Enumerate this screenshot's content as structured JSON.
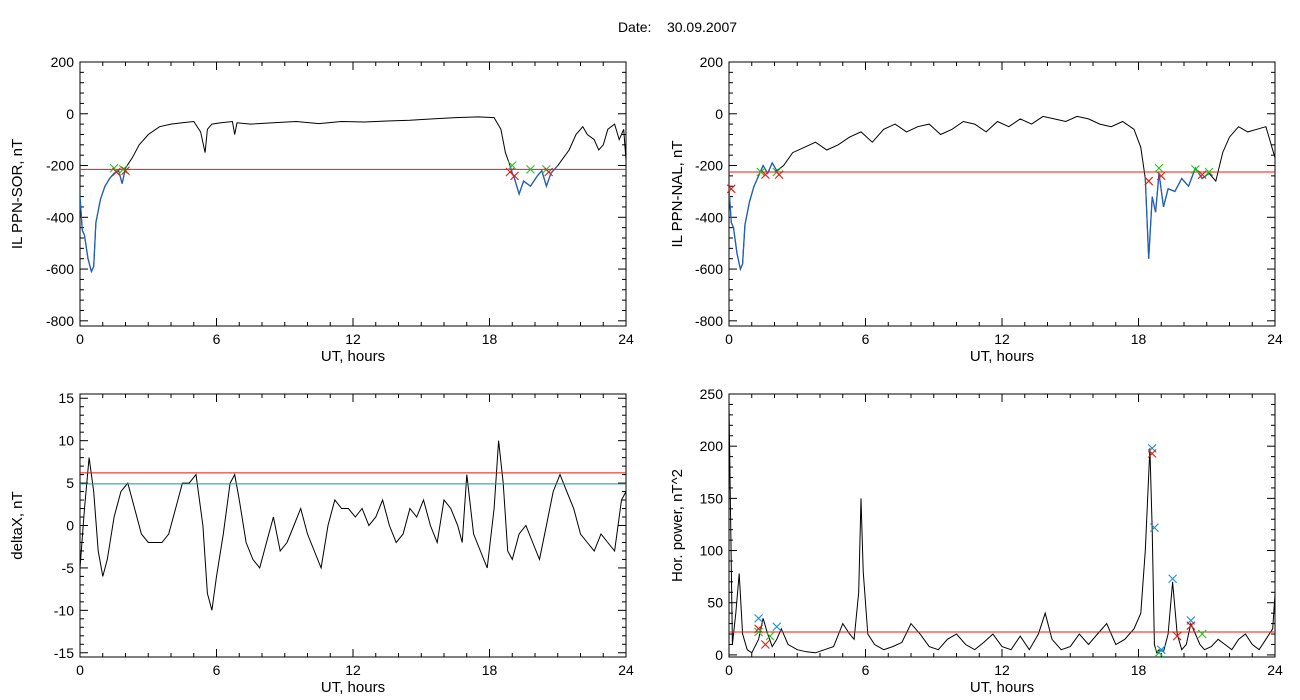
{
  "page": {
    "title_prefix": "Date:",
    "date": "30.09.2007"
  },
  "colors": {
    "data_line": "#000000",
    "highlight_line": "#1f5fbf",
    "threshold_red": "#e8180f",
    "threshold_teal": "#1a8fa0",
    "marker_red": "#e8180f",
    "marker_green": "#22c122",
    "marker_blue": "#1a8fcf"
  },
  "chart_data": [
    {
      "type": "line",
      "panel": "top-left",
      "ylabel": "IL PPN-SOR, nT",
      "xlabel": "UT, hours",
      "xlim": [
        0,
        24
      ],
      "ylim": [
        -820,
        200
      ],
      "xticks": [
        0,
        6,
        12,
        18,
        24
      ],
      "yticks": [
        -800,
        -600,
        -400,
        -200,
        0,
        200
      ],
      "thresholds": [
        {
          "y": -215,
          "color": "red"
        }
      ],
      "series": [
        {
          "role": "main",
          "x": [
            0,
            0.1,
            0.2,
            0.35,
            0.5,
            0.6,
            0.7,
            0.9,
            1.1,
            1.3,
            1.5,
            1.7,
            1.85,
            2.0,
            2.3,
            2.6,
            3.0,
            3.5,
            4.0,
            4.5,
            5.0,
            5.3,
            5.5,
            5.6,
            5.8,
            6.2,
            6.7,
            6.8,
            6.9,
            7.5,
            8.5,
            9.5,
            10.5,
            11.5,
            12.5,
            13.5,
            14.5,
            15.5,
            16.5,
            17.5,
            18.2,
            18.5,
            18.7,
            18.9,
            19.0,
            19.1,
            19.3,
            19.5,
            19.8,
            20.1,
            20.3,
            20.5,
            20.7,
            21.0,
            21.5,
            21.8,
            22.1,
            22.3,
            22.6,
            22.8,
            23.0,
            23.2,
            23.5,
            23.7,
            23.9,
            24.0
          ],
          "y": [
            -320,
            -450,
            -470,
            -560,
            -610,
            -590,
            -420,
            -330,
            -280,
            -250,
            -230,
            -220,
            -270,
            -210,
            -170,
            -120,
            -80,
            -50,
            -40,
            -35,
            -30,
            -70,
            -150,
            -60,
            -40,
            -35,
            -30,
            -80,
            -35,
            -40,
            -35,
            -30,
            -38,
            -30,
            -32,
            -28,
            -25,
            -20,
            -15,
            -12,
            -15,
            -60,
            -150,
            -200,
            -230,
            -250,
            -310,
            -260,
            -280,
            -240,
            -220,
            -280,
            -230,
            -200,
            -140,
            -80,
            -50,
            -80,
            -100,
            -140,
            -120,
            -60,
            -40,
            -100,
            -60,
            -180
          ]
        },
        {
          "role": "highlight",
          "segments": [
            {
              "x": [
                0,
                0.1,
                0.2,
                0.35,
                0.5,
                0.6,
                0.7,
                0.9,
                1.1,
                1.3,
                1.5,
                1.7,
                1.85,
                2.0
              ],
              "y": [
                -320,
                -450,
                -470,
                -560,
                -610,
                -590,
                -420,
                -330,
                -280,
                -250,
                -230,
                -220,
                -270,
                -210
              ]
            },
            {
              "x": [
                18.9,
                19.0,
                19.1,
                19.3,
                19.5,
                19.8,
                20.1,
                20.3,
                20.5,
                20.7,
                21.0
              ],
              "y": [
                -200,
                -230,
                -250,
                -310,
                -260,
                -280,
                -240,
                -220,
                -280,
                -230,
                -200
              ]
            }
          ]
        }
      ],
      "markers": [
        {
          "x": 1.5,
          "y": -210,
          "color": "green"
        },
        {
          "x": 1.6,
          "y": -225,
          "color": "red"
        },
        {
          "x": 1.9,
          "y": -215,
          "color": "green"
        },
        {
          "x": 2.0,
          "y": -220,
          "color": "red"
        },
        {
          "x": 18.9,
          "y": -225,
          "color": "red"
        },
        {
          "x": 19.0,
          "y": -200,
          "color": "green"
        },
        {
          "x": 19.1,
          "y": -240,
          "color": "red"
        },
        {
          "x": 19.8,
          "y": -215,
          "color": "green"
        },
        {
          "x": 20.5,
          "y": -215,
          "color": "green"
        },
        {
          "x": 20.6,
          "y": -225,
          "color": "red"
        }
      ]
    },
    {
      "type": "line",
      "panel": "top-right",
      "ylabel": "IL PPN-NAL, nT",
      "xlabel": "UT, hours",
      "xlim": [
        0,
        24
      ],
      "ylim": [
        -820,
        200
      ],
      "xticks": [
        0,
        6,
        12,
        18,
        24
      ],
      "yticks": [
        -800,
        -600,
        -400,
        -200,
        0,
        200
      ],
      "thresholds": [
        {
          "y": -225,
          "color": "red"
        }
      ],
      "series": [
        {
          "role": "main",
          "x": [
            0,
            0.1,
            0.2,
            0.35,
            0.5,
            0.6,
            0.7,
            0.9,
            1.1,
            1.3,
            1.5,
            1.7,
            1.9,
            2.1,
            2.4,
            2.8,
            3.3,
            3.8,
            4.3,
            4.8,
            5.3,
            5.8,
            6.3,
            6.8,
            7.3,
            7.8,
            8.3,
            8.8,
            9.3,
            9.8,
            10.3,
            10.8,
            11.3,
            11.8,
            12.3,
            12.8,
            13.3,
            13.8,
            14.3,
            14.8,
            15.3,
            15.8,
            16.3,
            16.8,
            17.3,
            17.8,
            18.1,
            18.3,
            18.45,
            18.6,
            18.75,
            18.9,
            19.1,
            19.3,
            19.6,
            19.9,
            20.2,
            20.5,
            20.8,
            21.1,
            21.4,
            21.7,
            22.0,
            22.4,
            22.8,
            23.2,
            23.6,
            24.0
          ],
          "y": [
            -290,
            -420,
            -440,
            -540,
            -600,
            -580,
            -430,
            -340,
            -280,
            -240,
            -200,
            -230,
            -190,
            -220,
            -200,
            -150,
            -130,
            -110,
            -140,
            -120,
            -90,
            -70,
            -110,
            -60,
            -40,
            -70,
            -50,
            -40,
            -80,
            -60,
            -30,
            -40,
            -70,
            -30,
            -50,
            -20,
            -40,
            -10,
            -20,
            -30,
            -10,
            -20,
            -40,
            -50,
            -30,
            -60,
            -130,
            -250,
            -560,
            -320,
            -380,
            -230,
            -360,
            -290,
            -300,
            -250,
            -280,
            -210,
            -250,
            -230,
            -260,
            -150,
            -90,
            -50,
            -70,
            -60,
            -50,
            -170
          ]
        },
        {
          "role": "highlight",
          "segments": [
            {
              "x": [
                0,
                0.1,
                0.2,
                0.35,
                0.5,
                0.6,
                0.7,
                0.9,
                1.1,
                1.3,
                1.5,
                1.7,
                1.9,
                2.1
              ],
              "y": [
                -290,
                -420,
                -440,
                -540,
                -600,
                -580,
                -430,
                -340,
                -280,
                -240,
                -200,
                -230,
                -190,
                -220
              ]
            },
            {
              "x": [
                18.3,
                18.45,
                18.6,
                18.75,
                18.9,
                19.1,
                19.3,
                19.6,
                19.9,
                20.2,
                20.5,
                20.8,
                21.1
              ],
              "y": [
                -250,
                -560,
                -320,
                -380,
                -230,
                -360,
                -290,
                -300,
                -250,
                -280,
                -210,
                -250,
                -230
              ]
            }
          ]
        }
      ],
      "markers": [
        {
          "x": 0.1,
          "y": -290,
          "color": "red"
        },
        {
          "x": 1.4,
          "y": -225,
          "color": "green"
        },
        {
          "x": 1.6,
          "y": -235,
          "color": "red"
        },
        {
          "x": 2.1,
          "y": -225,
          "color": "green"
        },
        {
          "x": 2.2,
          "y": -235,
          "color": "red"
        },
        {
          "x": 18.45,
          "y": -260,
          "color": "red"
        },
        {
          "x": 18.9,
          "y": -210,
          "color": "green"
        },
        {
          "x": 19.0,
          "y": -240,
          "color": "red"
        },
        {
          "x": 20.5,
          "y": -215,
          "color": "green"
        },
        {
          "x": 20.8,
          "y": -235,
          "color": "red"
        },
        {
          "x": 21.1,
          "y": -225,
          "color": "green"
        }
      ]
    },
    {
      "type": "line",
      "panel": "bottom-left",
      "ylabel": "deltaX, nT",
      "xlabel": "UT, hours",
      "xlim": [
        0,
        24
      ],
      "ylim": [
        -15.5,
        15.5
      ],
      "xticks": [
        0,
        6,
        12,
        18,
        24
      ],
      "yticks": [
        -15,
        -10,
        -5,
        0,
        5,
        10,
        15
      ],
      "thresholds": [
        {
          "y": 6.2,
          "color": "red"
        },
        {
          "y": 4.9,
          "color": "teal"
        }
      ],
      "series": [
        {
          "role": "main",
          "x": [
            0,
            0.2,
            0.4,
            0.6,
            0.8,
            1.0,
            1.2,
            1.5,
            1.8,
            2.1,
            2.4,
            2.7,
            3.0,
            3.3,
            3.6,
            3.9,
            4.2,
            4.5,
            4.8,
            5.1,
            5.4,
            5.6,
            5.8,
            6.0,
            6.3,
            6.6,
            6.8,
            7.0,
            7.3,
            7.6,
            7.9,
            8.2,
            8.5,
            8.8,
            9.1,
            9.4,
            9.7,
            10.0,
            10.3,
            10.6,
            10.9,
            11.2,
            11.5,
            11.8,
            12.1,
            12.4,
            12.7,
            13.0,
            13.3,
            13.6,
            13.9,
            14.2,
            14.5,
            14.8,
            15.1,
            15.4,
            15.7,
            16.0,
            16.3,
            16.6,
            16.8,
            17.0,
            17.3,
            17.6,
            17.9,
            18.2,
            18.4,
            18.6,
            18.8,
            19.0,
            19.3,
            19.6,
            19.9,
            20.2,
            20.5,
            20.8,
            21.1,
            21.4,
            21.7,
            22.0,
            22.3,
            22.6,
            22.9,
            23.2,
            23.5,
            23.8,
            24.0
          ],
          "y": [
            -5,
            2,
            8,
            4,
            -3,
            -6,
            -4,
            1,
            4,
            5,
            2,
            -1,
            -2,
            -2,
            -2,
            -1,
            2,
            5,
            5,
            6,
            0,
            -8,
            -10,
            -6,
            -1,
            5,
            6,
            3,
            -2,
            -4,
            -5,
            -2,
            1,
            -3,
            -2,
            0,
            2,
            -1,
            -3,
            -5,
            0,
            3,
            2,
            2,
            1,
            2,
            0,
            1,
            3,
            0,
            -2,
            -1,
            2,
            1,
            3,
            0,
            -2,
            3,
            2,
            0,
            -2,
            6,
            -1,
            -3,
            -5,
            2,
            10,
            5,
            -3,
            -4,
            -1,
            0,
            -2,
            -4,
            0,
            4,
            6,
            4,
            2,
            -1,
            -2,
            -3,
            -1,
            -2,
            -3,
            3,
            4
          ]
        }
      ],
      "markers": []
    },
    {
      "type": "line",
      "panel": "bottom-right",
      "ylabel": "Hor. power, nT^2",
      "xlabel": "UT, hours",
      "xlim": [
        0,
        24
      ],
      "ylim": [
        -2,
        250
      ],
      "xticks": [
        0,
        6,
        12,
        18,
        24
      ],
      "yticks": [
        0,
        50,
        100,
        150,
        200,
        250
      ],
      "thresholds": [
        {
          "y": 22,
          "color": "red"
        }
      ],
      "series": [
        {
          "role": "main",
          "x": [
            0,
            0.15,
            0.3,
            0.45,
            0.6,
            0.8,
            1.0,
            1.3,
            1.5,
            1.7,
            1.9,
            2.1,
            2.3,
            2.6,
            3.0,
            3.4,
            3.8,
            4.2,
            4.6,
            5.0,
            5.3,
            5.5,
            5.7,
            5.8,
            5.9,
            6.1,
            6.4,
            6.8,
            7.2,
            7.6,
            8.0,
            8.4,
            8.8,
            9.2,
            9.6,
            10.0,
            10.4,
            10.8,
            11.2,
            11.6,
            12.0,
            12.4,
            12.8,
            13.2,
            13.6,
            13.9,
            14.2,
            14.6,
            15.0,
            15.4,
            15.8,
            16.2,
            16.6,
            17.0,
            17.4,
            17.8,
            18.1,
            18.3,
            18.5,
            18.6,
            18.7,
            18.8,
            18.9,
            19.1,
            19.3,
            19.5,
            19.7,
            19.9,
            20.1,
            20.3,
            20.5,
            20.7,
            20.9,
            21.2,
            21.5,
            21.8,
            22.1,
            22.4,
            22.7,
            23.0,
            23.3,
            23.6,
            23.9,
            24.0
          ],
          "y": [
            240,
            10,
            40,
            78,
            20,
            5,
            2,
            15,
            35,
            20,
            8,
            15,
            25,
            10,
            5,
            3,
            2,
            5,
            8,
            30,
            20,
            15,
            60,
            150,
            80,
            20,
            10,
            5,
            8,
            12,
            30,
            20,
            8,
            5,
            15,
            20,
            10,
            5,
            12,
            20,
            8,
            5,
            18,
            5,
            20,
            40,
            15,
            5,
            8,
            20,
            10,
            20,
            30,
            10,
            15,
            25,
            40,
            100,
            198,
            120,
            10,
            2,
            5,
            3,
            20,
            70,
            20,
            5,
            10,
            30,
            20,
            10,
            5,
            8,
            15,
            10,
            5,
            15,
            20,
            10,
            5,
            15,
            25,
            58
          ]
        }
      ],
      "markers": [
        {
          "x": 1.3,
          "y": 35,
          "color": "blue"
        },
        {
          "x": 1.3,
          "y": 25,
          "color": "red"
        },
        {
          "x": 1.3,
          "y": 22,
          "color": "green"
        },
        {
          "x": 1.6,
          "y": 10,
          "color": "red"
        },
        {
          "x": 1.8,
          "y": 18,
          "color": "green"
        },
        {
          "x": 2.1,
          "y": 27,
          "color": "blue"
        },
        {
          "x": 18.6,
          "y": 198,
          "color": "blue"
        },
        {
          "x": 18.6,
          "y": 193,
          "color": "red"
        },
        {
          "x": 18.7,
          "y": 122,
          "color": "blue"
        },
        {
          "x": 18.9,
          "y": 2,
          "color": "green"
        },
        {
          "x": 19.0,
          "y": 5,
          "color": "blue"
        },
        {
          "x": 19.5,
          "y": 73,
          "color": "blue"
        },
        {
          "x": 19.7,
          "y": 18,
          "color": "red"
        },
        {
          "x": 20.3,
          "y": 33,
          "color": "blue"
        },
        {
          "x": 20.3,
          "y": 28,
          "color": "red"
        },
        {
          "x": 20.8,
          "y": 20,
          "color": "green"
        }
      ]
    }
  ]
}
